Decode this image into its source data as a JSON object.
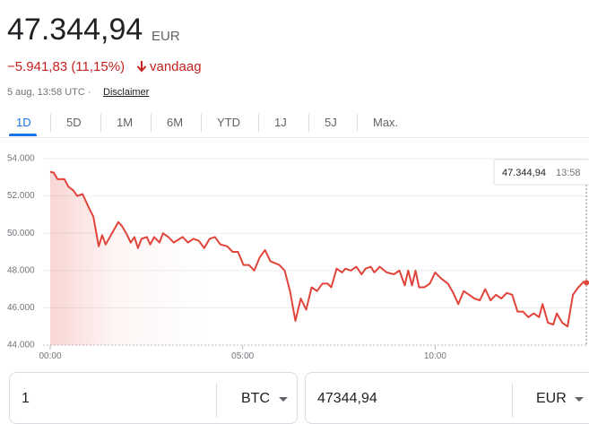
{
  "header": {
    "price": "47.344,94",
    "currency": "EUR",
    "change": "−5.941,83 (11,15%)",
    "period": "vandaag",
    "timestamp": "5 aug, 13:58 UTC ·",
    "disclaimer": "Disclaimer"
  },
  "tabs": [
    "1D",
    "5D",
    "1M",
    "6M",
    "YTD",
    "1J",
    "5J",
    "Max."
  ],
  "chart_data": {
    "type": "line",
    "color": "#e0443a",
    "x": [
      0,
      0.09,
      0.19,
      0.37,
      0.47,
      0.6,
      0.7,
      0.84,
      1.02,
      1.12,
      1.26,
      1.35,
      1.44,
      1.58,
      1.77,
      1.86,
      2,
      2.09,
      2.19,
      2.28,
      2.37,
      2.51,
      2.6,
      2.7,
      2.84,
      2.93,
      3.07,
      3.21,
      3.44,
      3.58,
      3.72,
      3.86,
      4,
      4.14,
      4.28,
      4.42,
      4.6,
      4.74,
      4.88,
      5.02,
      5.16,
      5.3,
      5.44,
      5.58,
      5.72,
      5.95,
      6.09,
      6.23,
      6.37,
      6.51,
      6.65,
      6.79,
      6.93,
      7.07,
      7.21,
      7.3,
      7.44,
      7.58,
      7.67,
      7.81,
      7.95,
      8.09,
      8.19,
      8.33,
      8.42,
      8.56,
      8.74,
      8.93,
      9.07,
      9.21,
      9.3,
      9.4,
      9.49,
      9.58,
      9.72,
      9.86,
      10,
      10.14,
      10.33,
      10.47,
      10.6,
      10.74,
      10.88,
      11.02,
      11.16,
      11.3,
      11.44,
      11.58,
      11.72,
      11.86,
      12,
      12.14,
      12.28,
      12.42,
      12.56,
      12.7,
      12.79,
      12.93,
      13.07,
      13.16,
      13.3,
      13.44,
      13.58,
      13.72,
      13.86,
      13.93
    ],
    "values": [
      53300,
      53250,
      52900,
      52900,
      52500,
      52300,
      52000,
      52100,
      51300,
      50900,
      49300,
      49900,
      49400,
      49900,
      50600,
      50400,
      49900,
      49500,
      49800,
      49200,
      49700,
      49800,
      49400,
      49800,
      49500,
      50000,
      49800,
      49500,
      49800,
      49500,
      49700,
      49600,
      49200,
      49700,
      49800,
      49400,
      49300,
      49000,
      49000,
      48300,
      48300,
      48000,
      48700,
      49100,
      48500,
      48300,
      48000,
      46900,
      45300,
      46500,
      45900,
      47100,
      46900,
      47300,
      47300,
      47100,
      48100,
      47900,
      48100,
      48000,
      48200,
      47800,
      48100,
      48200,
      47900,
      48200,
      47900,
      47800,
      48000,
      47200,
      48000,
      47200,
      48000,
      47100,
      47100,
      47300,
      47900,
      47600,
      47300,
      46800,
      46200,
      46900,
      46700,
      46500,
      46400,
      47000,
      46400,
      46700,
      46500,
      46800,
      46700,
      45800,
      45800,
      45500,
      45700,
      45500,
      46200,
      45200,
      45100,
      45700,
      45200,
      45000,
      46700,
      47100,
      47400,
      47344.94
    ],
    "xlim": [
      0,
      13.95
    ],
    "ylim": [
      44000,
      54000
    ],
    "xticks": [
      {
        "value": 0,
        "label": "00:00"
      },
      {
        "value": 5,
        "label": "05:00"
      },
      {
        "value": 10,
        "label": "10:00"
      }
    ],
    "yticks": [
      {
        "value": 44000,
        "label": "44.000"
      },
      {
        "value": 46000,
        "label": "46.000"
      },
      {
        "value": 48000,
        "label": "48.000"
      },
      {
        "value": 50000,
        "label": "50.000"
      },
      {
        "value": 52000,
        "label": "52.000"
      },
      {
        "value": 54000,
        "label": "54.000"
      }
    ],
    "grid": true,
    "tooltip": {
      "value": "47.344,94",
      "time": "13:58"
    }
  },
  "converter": {
    "from_amount": "1",
    "from_currency": "BTC",
    "to_amount": "47344,94",
    "to_currency": "EUR"
  }
}
